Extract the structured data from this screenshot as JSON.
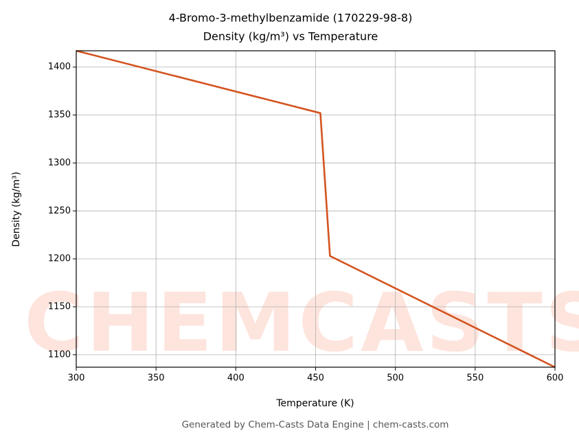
{
  "chart_data": {
    "type": "line",
    "title": "4-Bromo-3-methylbenzamide (170229-98-8)",
    "subtitle": "Density (kg/m³) vs Temperature",
    "x_label": "Temperature (K)",
    "y_label": "Density (kg/m³)",
    "footer": "Generated by Chem-Casts Data Engine | chem-casts.com",
    "watermark": "CHEMCASTS",
    "x": [
      300,
      453,
      459,
      600
    ],
    "series": [
      {
        "name": "Density",
        "color": "#d4531f",
        "values": [
          1417,
          1352,
          1203,
          1087
        ]
      }
    ],
    "xlim": [
      300,
      600
    ],
    "xticks": [
      300,
      350,
      400,
      450,
      500,
      550,
      600
    ],
    "ylim": [
      1087,
      1417
    ],
    "yticks": [
      1100,
      1150,
      1200,
      1250,
      1300,
      1350,
      1400
    ],
    "grid": true
  }
}
